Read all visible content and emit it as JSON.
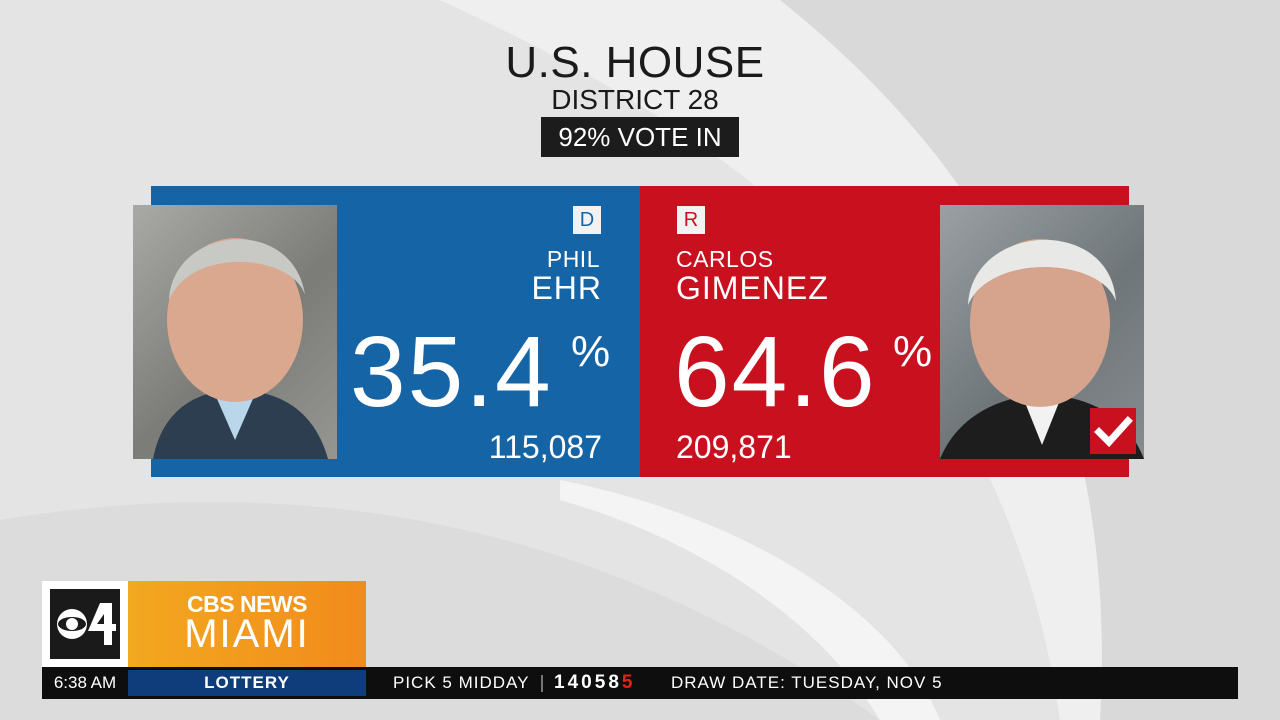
{
  "race": {
    "title": "U.S. HOUSE",
    "subtitle": "DISTRICT 28",
    "reporting": "92% VOTE IN"
  },
  "candidates": [
    {
      "party": "D",
      "first_name": "PHIL",
      "last_name": "EHR",
      "percent": "35.4",
      "percent_sign": "%",
      "votes": "115,087",
      "color": "#1565a6",
      "winner": false
    },
    {
      "party": "R",
      "first_name": "CARLOS",
      "last_name": "GIMENEZ",
      "percent": "64.6",
      "percent_sign": "%",
      "votes": "209,871",
      "color": "#c8101e",
      "winner": true,
      "winner_icon": "checkmark-icon"
    }
  ],
  "station": {
    "channel_logo": "CBS 4",
    "brand_top": "CBS NEWS",
    "brand_bottom": "MIAMI",
    "brand_color": "#f2a81f"
  },
  "ticker": {
    "time": "6:38 AM",
    "section": "LOTTERY",
    "game": "PICK 5 MIDDAY",
    "numbers": [
      "1",
      "4",
      "0",
      "5",
      "8"
    ],
    "bonus_number": "5",
    "draw_date": "DRAW DATE: TUESDAY, NOV 5"
  }
}
